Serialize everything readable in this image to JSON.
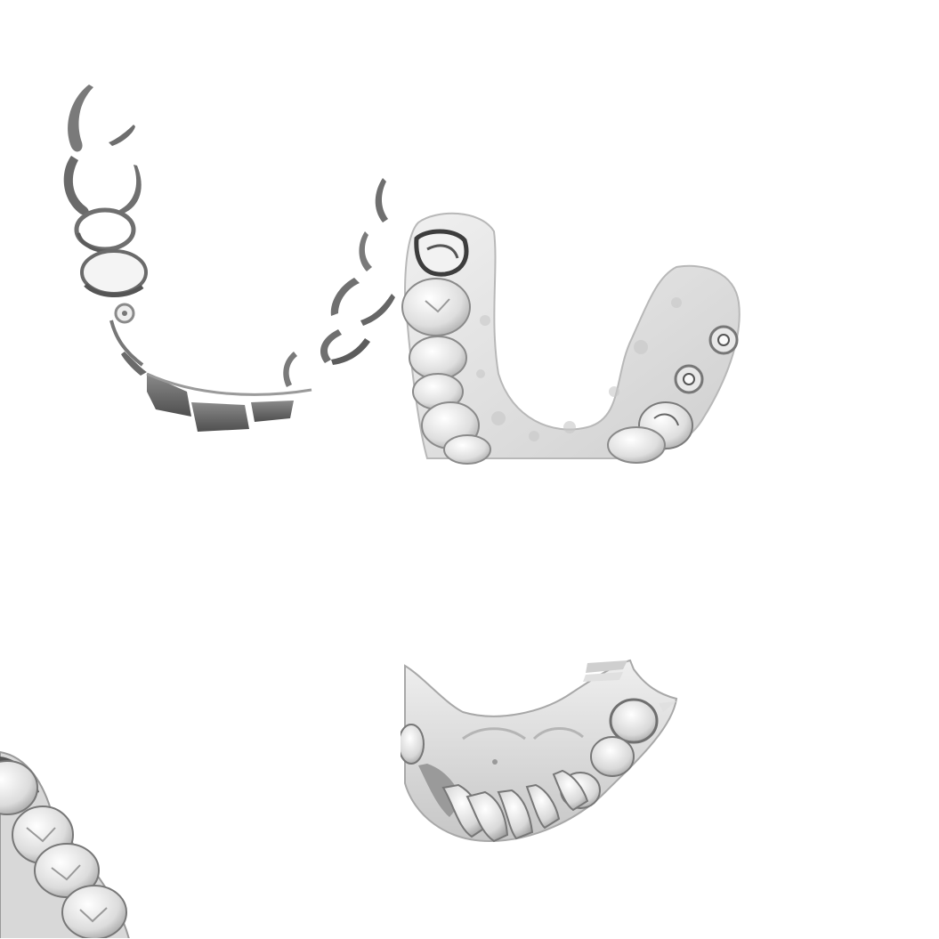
{
  "views": [
    {
      "id": "upper-arch-partial-scan-occlusal",
      "shade": "#8a8a8a"
    },
    {
      "id": "lower-arch-implant-occlusal",
      "shade": "#d9d9d9"
    },
    {
      "id": "lower-arch-posterior-closeup",
      "shade": "#cfcfcf"
    },
    {
      "id": "upper-arch-palatal-view",
      "shade": "#d0d0d0"
    }
  ],
  "colors": {
    "background": "#ffffff",
    "model_light": "#e6e6e6",
    "model_mid": "#bcbcbc",
    "model_dark": "#6e6e6e"
  }
}
